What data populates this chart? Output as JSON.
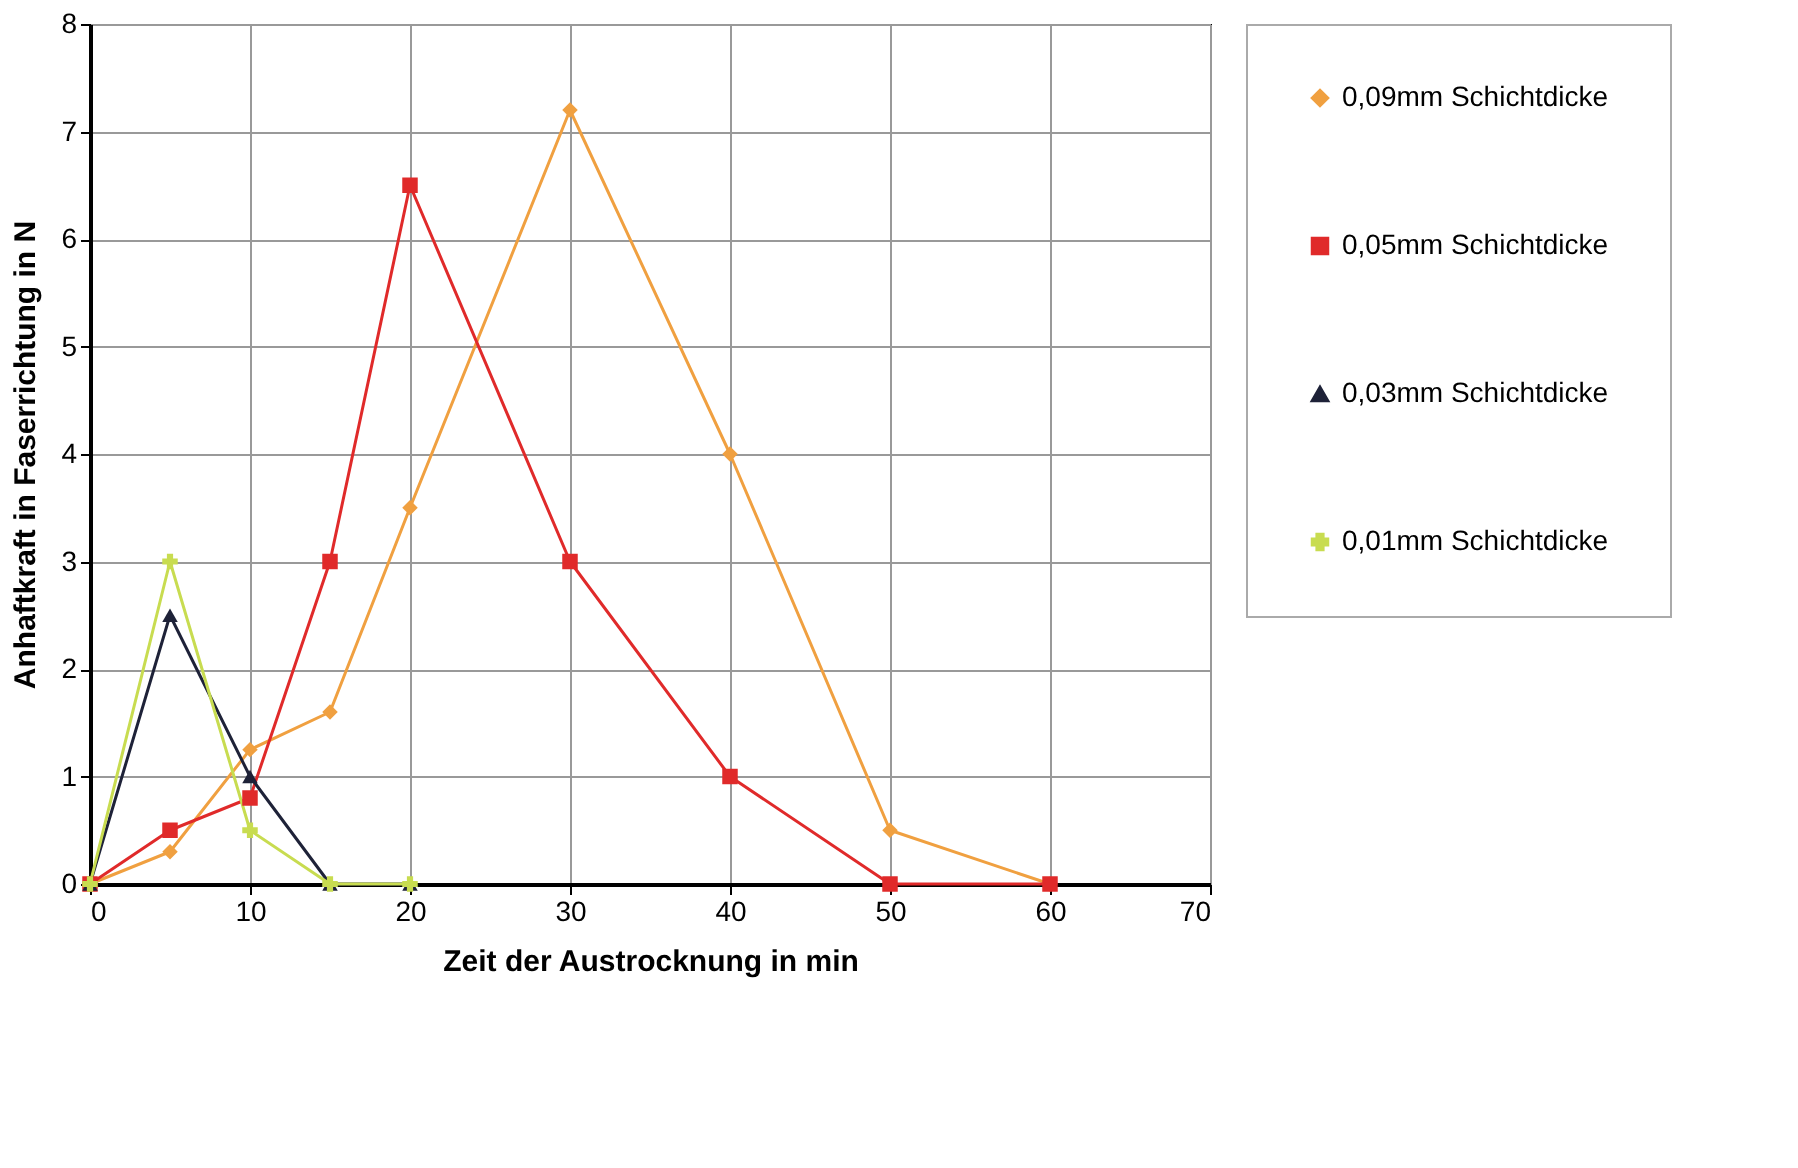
{
  "chart_data": {
    "type": "line",
    "xlabel": "Zeit der Austrocknung in min",
    "ylabel": "Anhaftkraft in Faserrichtung in N",
    "xlim": [
      0,
      70
    ],
    "xticks": [
      0,
      10,
      20,
      30,
      40,
      50,
      60,
      70
    ],
    "ylim": [
      0,
      8
    ],
    "yticks": [
      0,
      1,
      2,
      3,
      4,
      5,
      6,
      7,
      8
    ],
    "grid": true,
    "legend": "right",
    "line_style": "solid",
    "series": [
      {
        "name": "0,09mm Schichtdicke",
        "color": "#f0a040",
        "marker": "diamond",
        "x": [
          0,
          5,
          10,
          15,
          20,
          30,
          40,
          50,
          60
        ],
        "values": [
          0,
          0.3,
          1.25,
          1.6,
          3.5,
          7.2,
          4,
          0.5,
          0
        ]
      },
      {
        "name": "0,05mm Schichtdicke",
        "color": "#e02a2a",
        "marker": "square",
        "x": [
          0,
          5,
          10,
          15,
          20,
          30,
          40,
          50,
          60
        ],
        "values": [
          0,
          0.5,
          0.8,
          3,
          6.5,
          3,
          1,
          0,
          0
        ]
      },
      {
        "name": "0,03mm Schichtdicke",
        "color": "#1e2238",
        "marker": "triangle",
        "x": [
          0,
          5,
          10,
          15,
          20
        ],
        "values": [
          0,
          2.5,
          1,
          0,
          0
        ]
      },
      {
        "name": "0,01mm Schichtdicke",
        "color": "#c8dc50",
        "marker": "cross",
        "x": [
          0,
          5,
          10,
          15,
          20
        ],
        "values": [
          0,
          3,
          0.5,
          0,
          0
        ]
      }
    ]
  }
}
